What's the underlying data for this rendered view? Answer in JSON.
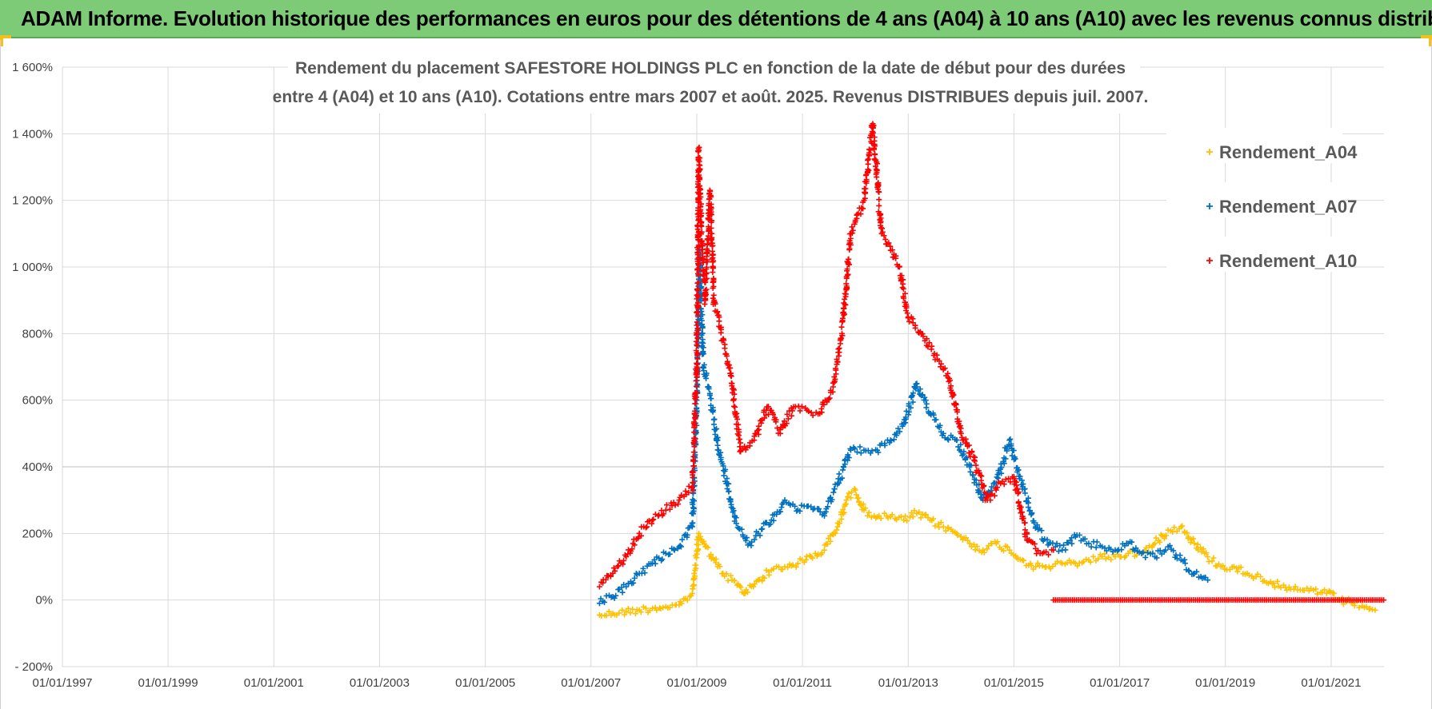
{
  "header": {
    "title": "ADAM Informe. Evolution historique des performances en euros pour des détentions de 4 ans (A04) à 10 ans (A10) avec les revenus connus distribués"
  },
  "chart_data": {
    "type": "scatter",
    "title_lines": [
      "Rendement du placement SAFESTORE HOLDINGS PLC en fonction de la date de début pour des durées",
      "entre 4 (A04) et 10 ans (A10). Cotations entre mars 2007 et août. 2025. Revenus DISTRIBUES depuis juil. 2007."
    ],
    "xlabel": "",
    "ylabel": "",
    "x_range": [
      "1997-01-01",
      "2022-01-01"
    ],
    "y_range": [
      -200,
      1600
    ],
    "x_ticks": [
      "01/01/1997",
      "01/01/1999",
      "01/01/2001",
      "01/01/2003",
      "01/01/2005",
      "01/01/2007",
      "01/01/2009",
      "01/01/2011",
      "01/01/2013",
      "01/01/2015",
      "01/01/2017",
      "01/01/2019",
      "01/01/2021"
    ],
    "y_ticks": [
      "- 200%",
      "0%",
      "200%",
      "400%",
      "600%",
      "800%",
      "1 000%",
      "1 200%",
      "1 400%",
      "1 600%"
    ],
    "grid": true,
    "legend_position": "right",
    "series": [
      {
        "name": "Rendement_A04",
        "color": "#ffc000",
        "marker": "+",
        "points": [
          [
            "2007-03-01",
            -45
          ],
          [
            "2007-06-01",
            -40
          ],
          [
            "2007-09-01",
            -35
          ],
          [
            "2007-12-01",
            -30
          ],
          [
            "2008-03-01",
            -25
          ],
          [
            "2008-06-01",
            -20
          ],
          [
            "2008-09-01",
            -15
          ],
          [
            "2008-12-01",
            20
          ],
          [
            "2009-01-15",
            200
          ],
          [
            "2009-03-01",
            160
          ],
          [
            "2009-05-01",
            120
          ],
          [
            "2009-07-01",
            80
          ],
          [
            "2009-09-01",
            60
          ],
          [
            "2009-12-01",
            20
          ],
          [
            "2010-03-01",
            60
          ],
          [
            "2010-06-01",
            90
          ],
          [
            "2010-09-01",
            100
          ],
          [
            "2010-12-01",
            110
          ],
          [
            "2011-03-01",
            130
          ],
          [
            "2011-06-01",
            150
          ],
          [
            "2011-09-01",
            220
          ],
          [
            "2011-11-01",
            300
          ],
          [
            "2012-01-01",
            330
          ],
          [
            "2012-03-01",
            270
          ],
          [
            "2012-06-01",
            250
          ],
          [
            "2012-09-01",
            250
          ],
          [
            "2012-12-01",
            240
          ],
          [
            "2013-03-01",
            260
          ],
          [
            "2013-06-01",
            240
          ],
          [
            "2013-09-01",
            220
          ],
          [
            "2013-12-01",
            200
          ],
          [
            "2014-03-01",
            170
          ],
          [
            "2014-06-01",
            150
          ],
          [
            "2014-09-01",
            170
          ],
          [
            "2014-12-01",
            150
          ],
          [
            "2015-03-01",
            120
          ],
          [
            "2015-06-01",
            100
          ],
          [
            "2015-09-01",
            100
          ],
          [
            "2015-12-01",
            110
          ],
          [
            "2016-03-01",
            110
          ],
          [
            "2016-06-01",
            120
          ],
          [
            "2016-09-01",
            130
          ],
          [
            "2016-12-01",
            130
          ],
          [
            "2017-03-01",
            140
          ],
          [
            "2017-06-01",
            140
          ],
          [
            "2017-09-01",
            170
          ],
          [
            "2017-12-01",
            210
          ],
          [
            "2018-03-01",
            220
          ],
          [
            "2018-06-01",
            170
          ],
          [
            "2018-09-01",
            130
          ],
          [
            "2018-12-01",
            100
          ],
          [
            "2019-03-01",
            100
          ],
          [
            "2019-06-01",
            80
          ],
          [
            "2019-09-01",
            70
          ],
          [
            "2019-12-01",
            50
          ],
          [
            "2020-03-01",
            30
          ],
          [
            "2020-06-01",
            30
          ],
          [
            "2020-09-01",
            30
          ],
          [
            "2020-12-01",
            20
          ],
          [
            "2021-03-01",
            0
          ],
          [
            "2021-06-01",
            -10
          ],
          [
            "2021-09-01",
            -20
          ],
          [
            "2021-11-01",
            -30
          ]
        ]
      },
      {
        "name": "Rendement_A07",
        "color": "#0070c0",
        "marker": "+",
        "points": [
          [
            "2007-03-01",
            -10
          ],
          [
            "2007-06-01",
            10
          ],
          [
            "2007-09-01",
            40
          ],
          [
            "2007-12-01",
            80
          ],
          [
            "2008-03-01",
            110
          ],
          [
            "2008-06-01",
            140
          ],
          [
            "2008-09-01",
            160
          ],
          [
            "2008-12-01",
            220
          ],
          [
            "2009-01-01",
            600
          ],
          [
            "2009-01-20",
            1050
          ],
          [
            "2009-02-15",
            700
          ],
          [
            "2009-04-01",
            620
          ],
          [
            "2009-06-01",
            450
          ],
          [
            "2009-08-01",
            350
          ],
          [
            "2009-10-01",
            230
          ],
          [
            "2010-01-01",
            170
          ],
          [
            "2010-03-01",
            200
          ],
          [
            "2010-06-01",
            240
          ],
          [
            "2010-09-01",
            300
          ],
          [
            "2010-12-01",
            270
          ],
          [
            "2011-03-01",
            280
          ],
          [
            "2011-06-01",
            260
          ],
          [
            "2011-09-01",
            350
          ],
          [
            "2011-12-01",
            450
          ],
          [
            "2012-03-01",
            450
          ],
          [
            "2012-06-01",
            450
          ],
          [
            "2012-09-01",
            480
          ],
          [
            "2012-12-01",
            530
          ],
          [
            "2013-03-01",
            650
          ],
          [
            "2013-06-01",
            560
          ],
          [
            "2013-09-01",
            500
          ],
          [
            "2013-12-01",
            480
          ],
          [
            "2014-03-01",
            400
          ],
          [
            "2014-06-01",
            300
          ],
          [
            "2014-09-01",
            350
          ],
          [
            "2014-12-01",
            480
          ],
          [
            "2015-03-01",
            340
          ],
          [
            "2015-06-01",
            220
          ],
          [
            "2015-09-01",
            170
          ],
          [
            "2015-12-01",
            150
          ],
          [
            "2016-03-01",
            190
          ],
          [
            "2016-06-01",
            170
          ],
          [
            "2016-09-01",
            160
          ],
          [
            "2016-12-01",
            150
          ],
          [
            "2017-03-01",
            170
          ],
          [
            "2017-06-01",
            140
          ],
          [
            "2017-09-01",
            130
          ],
          [
            "2017-12-01",
            160
          ],
          [
            "2018-03-01",
            120
          ],
          [
            "2018-06-01",
            80
          ],
          [
            "2018-09-01",
            60
          ]
        ]
      },
      {
        "name": "Rendement_A10",
        "color": "#ff0000",
        "marker": "+",
        "points": [
          [
            "2007-03-01",
            40
          ],
          [
            "2007-06-01",
            80
          ],
          [
            "2007-09-01",
            130
          ],
          [
            "2007-12-01",
            200
          ],
          [
            "2008-03-01",
            240
          ],
          [
            "2008-06-01",
            270
          ],
          [
            "2008-09-01",
            300
          ],
          [
            "2008-12-01",
            340
          ],
          [
            "2009-01-01",
            700
          ],
          [
            "2009-01-15",
            1350
          ],
          [
            "2009-02-01",
            1100
          ],
          [
            "2009-03-01",
            900
          ],
          [
            "2009-04-01",
            1230
          ],
          [
            "2009-05-01",
            900
          ],
          [
            "2009-07-01",
            780
          ],
          [
            "2009-09-01",
            650
          ],
          [
            "2009-11-01",
            450
          ],
          [
            "2010-02-01",
            480
          ],
          [
            "2010-05-01",
            580
          ],
          [
            "2010-08-01",
            500
          ],
          [
            "2010-11-01",
            580
          ],
          [
            "2011-02-01",
            570
          ],
          [
            "2011-05-01",
            560
          ],
          [
            "2011-08-01",
            640
          ],
          [
            "2011-10-01",
            800
          ],
          [
            "2011-12-01",
            1100
          ],
          [
            "2012-03-01",
            1200
          ],
          [
            "2012-05-01",
            1430
          ],
          [
            "2012-07-01",
            1100
          ],
          [
            "2012-09-01",
            1050
          ],
          [
            "2012-11-01",
            1000
          ],
          [
            "2013-01-01",
            850
          ],
          [
            "2013-04-01",
            800
          ],
          [
            "2013-07-01",
            740
          ],
          [
            "2013-10-01",
            680
          ],
          [
            "2014-01-01",
            500
          ],
          [
            "2014-04-01",
            420
          ],
          [
            "2014-07-01",
            300
          ],
          [
            "2014-10-01",
            350
          ],
          [
            "2015-01-01",
            370
          ],
          [
            "2015-04-01",
            180
          ],
          [
            "2015-07-01",
            140
          ],
          [
            "2015-10-01",
            150
          ]
        ],
        "zero_segment": [
          "2015-10-01",
          "2021-12-31",
          0
        ]
      }
    ]
  }
}
